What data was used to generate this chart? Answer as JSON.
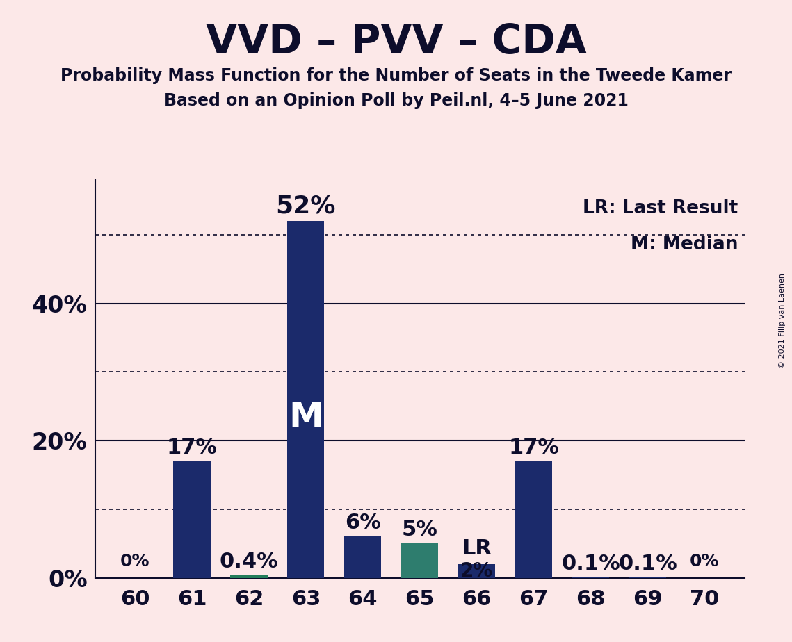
{
  "title": "VVD – PVV – CDA",
  "subtitle1": "Probability Mass Function for the Number of Seats in the Tweede Kamer",
  "subtitle2": "Based on an Opinion Poll by Peil.nl, 4–5 June 2021",
  "copyright": "© 2021 Filip van Laenen",
  "categories": [
    60,
    61,
    62,
    63,
    64,
    65,
    66,
    67,
    68,
    69,
    70
  ],
  "values": [
    0.0,
    17.0,
    0.4,
    52.0,
    6.0,
    5.0,
    2.0,
    17.0,
    0.1,
    0.1,
    0.0
  ],
  "bar_colors": [
    "#1b2a6b",
    "#1b2a6b",
    "#237d5a",
    "#1b2a6b",
    "#1b2a6b",
    "#2e7d6e",
    "#1b2a6b",
    "#1b2a6b",
    "#1b2a6b",
    "#1b2a6b",
    "#1b2a6b"
  ],
  "median_bar_index": 3,
  "lr_bar_index": 6,
  "median_label": "M",
  "background_color": "#fce8e8",
  "text_color": "#0d0d2b",
  "ysolid_lines": [
    0,
    20,
    40
  ],
  "ydotted_lines": [
    10,
    30,
    50
  ],
  "ylim": [
    0,
    58
  ],
  "legend_text1": "LR: Last Result",
  "legend_text2": "M: Median",
  "bar_width": 0.65
}
